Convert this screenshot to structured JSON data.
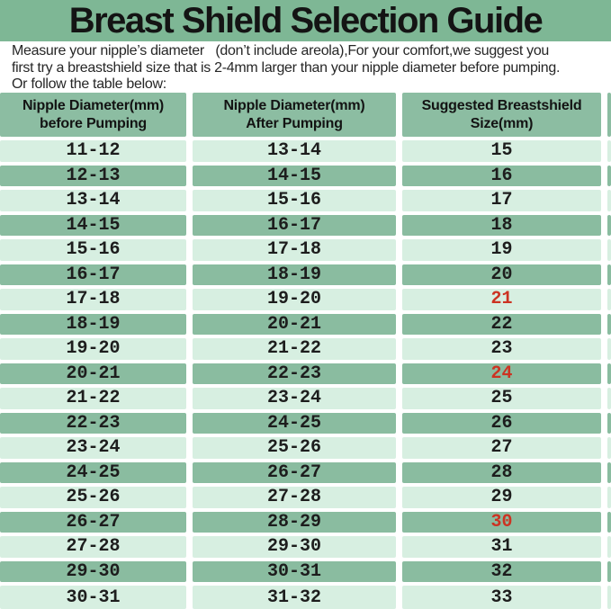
{
  "title": "Breast Shield Selection Guide",
  "intro": {
    "line1": "Measure your nipple’s diameter   (don’t include areola),For your comfort,we suggest you",
    "line2": "first try a breastshield size that is 2-4mm larger than your nipple diameter before pumping.",
    "line3": "Or follow the table below:"
  },
  "colors": {
    "title_band_green": "#7eb795",
    "header_cell_green": "#8cbda2",
    "row_dark_green": "#8abca0",
    "row_light_green": "#d7efe1",
    "highlight_red": "#cc3322",
    "text_black": "#1d1d1d"
  },
  "table": {
    "headers": [
      {
        "line1": "Nipple Diameter(mm)",
        "line2": "before Pumping"
      },
      {
        "line1": "Nipple Diameter(mm)",
        "line2": "After Pumping"
      },
      {
        "line1": "Suggested Breastshield",
        "line2": "Size(mm)"
      }
    ],
    "rows": [
      {
        "before": "11-12",
        "after": "13-14",
        "size": "15",
        "highlight": false
      },
      {
        "before": "12-13",
        "after": "14-15",
        "size": "16",
        "highlight": false
      },
      {
        "before": "13-14",
        "after": "15-16",
        "size": "17",
        "highlight": false
      },
      {
        "before": "14-15",
        "after": "16-17",
        "size": "18",
        "highlight": false
      },
      {
        "before": "15-16",
        "after": "17-18",
        "size": "19",
        "highlight": false
      },
      {
        "before": "16-17",
        "after": "18-19",
        "size": "20",
        "highlight": false
      },
      {
        "before": "17-18",
        "after": "19-20",
        "size": "21",
        "highlight": true
      },
      {
        "before": "18-19",
        "after": "20-21",
        "size": "22",
        "highlight": false
      },
      {
        "before": "19-20",
        "after": "21-22",
        "size": "23",
        "highlight": false
      },
      {
        "before": "20-21",
        "after": "22-23",
        "size": "24",
        "highlight": true
      },
      {
        "before": "21-22",
        "after": "23-24",
        "size": "25",
        "highlight": false
      },
      {
        "before": "22-23",
        "after": "24-25",
        "size": "26",
        "highlight": false
      },
      {
        "before": "23-24",
        "after": "25-26",
        "size": "27",
        "highlight": false
      },
      {
        "before": "24-25",
        "after": "26-27",
        "size": "28",
        "highlight": false
      },
      {
        "before": "25-26",
        "after": "27-28",
        "size": "29",
        "highlight": false
      },
      {
        "before": "26-27",
        "after": "28-29",
        "size": "30",
        "highlight": true
      },
      {
        "before": "27-28",
        "after": "29-30",
        "size": "31",
        "highlight": false
      },
      {
        "before": "29-30",
        "after": "30-31",
        "size": "32",
        "highlight": false
      },
      {
        "before": "30-31",
        "after": "31-32",
        "size": "33",
        "highlight": false
      }
    ]
  }
}
